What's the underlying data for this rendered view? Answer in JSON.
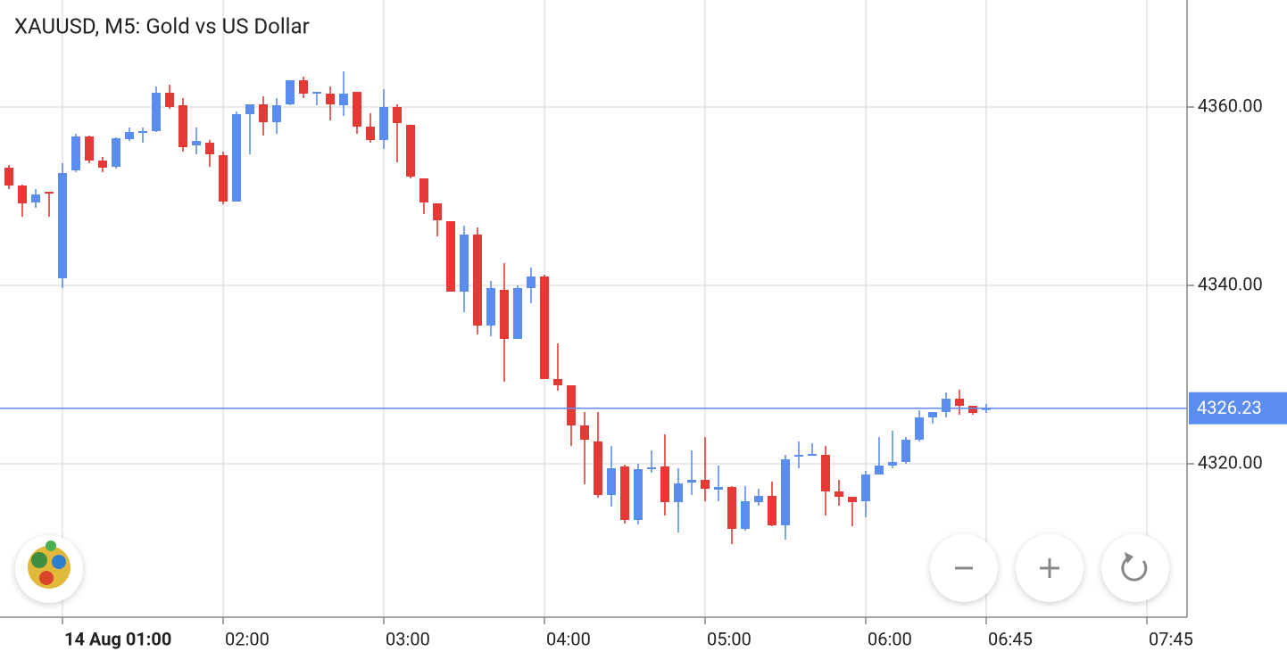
{
  "chart_data": {
    "type": "candlestick",
    "title": "XAUUSD, M5: Gold vs US Dollar",
    "x": [
      "00:40",
      "00:45",
      "00:50",
      "00:55",
      "01:00",
      "01:05",
      "01:10",
      "01:15",
      "01:20",
      "01:25",
      "01:30",
      "01:35",
      "01:40",
      "01:45",
      "01:50",
      "01:55",
      "02:00",
      "02:05",
      "02:10",
      "02:15",
      "02:20",
      "02:25",
      "02:30",
      "02:35",
      "02:40",
      "02:45",
      "02:50",
      "02:55",
      "03:00",
      "03:05",
      "03:10",
      "03:15",
      "03:20",
      "03:25",
      "03:30",
      "03:35",
      "03:40",
      "03:45",
      "03:50",
      "03:55",
      "04:00",
      "04:05",
      "04:10",
      "04:15",
      "04:20",
      "04:25",
      "04:30",
      "04:35",
      "04:40",
      "04:45",
      "04:50",
      "04:55",
      "05:00",
      "05:05",
      "05:10",
      "05:15",
      "05:20",
      "05:25",
      "05:30",
      "05:35",
      "05:40",
      "05:45",
      "05:50",
      "05:55",
      "06:00",
      "06:05",
      "06:10",
      "06:15",
      "06:20",
      "06:25",
      "06:30",
      "06:35",
      "06:40",
      "06:45"
    ],
    "open": [
      4353.2,
      4351.2,
      4349.3,
      4350.5,
      4340.8,
      4352.9,
      4356.7,
      4354,
      4353.3,
      4356.4,
      4357.1,
      4357.3,
      4361.6,
      4360.2,
      4355.7,
      4356,
      4354.6,
      4349.4,
      4359.2,
      4360.3,
      4358.3,
      4360.3,
      4363,
      4361.5,
      4361.5,
      4360.2,
      4361.7,
      4357.8,
      4356.3,
      4360,
      4358,
      4352,
      4349.2,
      4347.2,
      4339.3,
      4345.7,
      4335.5,
      4339.5,
      4334,
      4339.7,
      4341,
      4329.5,
      4328.8,
      4324.3,
      4322.5,
      4316.5,
      4319.7,
      4313.7,
      4319.4,
      4319.7,
      4315.7,
      4317.9,
      4318.2,
      4317.1,
      4317.4,
      4312.7,
      4315.7,
      4316.4,
      4313.1,
      4320.9,
      4321,
      4321,
      4316.9,
      4316.3,
      4315.8,
      4318.8,
      4319.8,
      4320.2,
      4322.7,
      4325.2,
      4325.8,
      4327.3,
      4326.5,
      4326.1
    ],
    "high": [
      4353.5,
      4351.3,
      4350.8,
      4350.5,
      4353.7,
      4357,
      4356.8,
      4354.4,
      4356.6,
      4357.7,
      4357.7,
      4362.3,
      4362.5,
      4361,
      4357.7,
      4356.3,
      4355,
      4359.5,
      4360.3,
      4361.2,
      4361,
      4363,
      4363.4,
      4361.7,
      4362.3,
      4364,
      4361.7,
      4359.3,
      4362,
      4360.3,
      4358,
      4352,
      4349.2,
      4347.2,
      4346.7,
      4346.5,
      4340.5,
      4342.5,
      4340,
      4342,
      4341.2,
      4333.5,
      4328.8,
      4325.8,
      4325.8,
      4322,
      4319.9,
      4320,
      4321.5,
      4323.3,
      4319.5,
      4321.5,
      4323,
      4319.8,
      4317.5,
      4317.5,
      4317.2,
      4318,
      4321,
      4322.5,
      4322.3,
      4322,
      4318.2,
      4316.3,
      4319.2,
      4323,
      4323.7,
      4323,
      4326,
      4325.8,
      4328,
      4328.3,
      4326.5,
      4326.7
    ],
    "low": [
      4350.8,
      4347.7,
      4348.7,
      4347.7,
      4339.7,
      4352.7,
      4353.7,
      4352.7,
      4353.1,
      4356.2,
      4356,
      4357.2,
      4359.8,
      4355,
      4354.7,
      4353.3,
      4349.1,
      4349.4,
      4354.7,
      4356.8,
      4357,
      4360.2,
      4361,
      4360.2,
      4358.5,
      4359,
      4357,
      4356,
      4355.3,
      4353.8,
      4352,
      4348,
      4345.5,
      4339.3,
      4337,
      4334.5,
      4334.3,
      4329.2,
      4334,
      4338,
      4329.5,
      4328.2,
      4322,
      4317.7,
      4316.2,
      4315.2,
      4313.3,
      4313.2,
      4319,
      4314.2,
      4312.3,
      4316.5,
      4315.8,
      4315.8,
      4311,
      4312.5,
      4315.3,
      4313,
      4311.5,
      4319.5,
      4320.9,
      4314.2,
      4315.3,
      4313,
      4314,
      4318.8,
      4319.5,
      4320,
      4322.5,
      4324.5,
      4325.2,
      4325.5,
      4325.5,
      4325.7
    ],
    "close": [
      4351.2,
      4349.2,
      4350.2,
      4350.3,
      4352.6,
      4356.7,
      4354,
      4353.2,
      4356.5,
      4357.2,
      4357.3,
      4361.6,
      4360,
      4355.5,
      4356.2,
      4354.7,
      4349.4,
      4359.2,
      4360.3,
      4358.3,
      4360.2,
      4363,
      4361.5,
      4361.7,
      4360.3,
      4361.5,
      4357.8,
      4356.3,
      4360,
      4358.2,
      4352.2,
      4349.3,
      4347.3,
      4339.3,
      4345.7,
      4335.5,
      4339.7,
      4334,
      4339.7,
      4341,
      4329.5,
      4328.8,
      4324.3,
      4322.7,
      4316.5,
      4319.5,
      4313.7,
      4319.4,
      4319.6,
      4315.7,
      4317.8,
      4318.2,
      4317.2,
      4317.4,
      4312.7,
      4315.8,
      4316.4,
      4313.1,
      4320.5,
      4321,
      4321.1,
      4316.9,
      4316.3,
      4315.7,
      4318.8,
      4319.8,
      4320.2,
      4322.7,
      4325.2,
      4325.8,
      4327.3,
      4326.5,
      4325.7,
      4326.23
    ],
    "up_color": "#5b8def",
    "down_color": "#e53935",
    "last_price": 4326.23,
    "price_line_color": "#5b8def",
    "xlim": [
      "00:35",
      "08:00"
    ],
    "xticks": [
      {
        "value": "01:00",
        "label": "14 Aug 01:00"
      },
      "02:00",
      "03:00",
      "04:00",
      "05:00",
      "06:00",
      "06:45",
      "07:45"
    ],
    "ylim": [
      4302.8,
      4372
    ],
    "yticks": [
      {
        "value": 4320,
        "label": "4320.00"
      },
      {
        "value": 4340,
        "label": "4340.00"
      },
      {
        "value": 4360,
        "label": "4360.00"
      }
    ],
    "grid": true
  }
}
